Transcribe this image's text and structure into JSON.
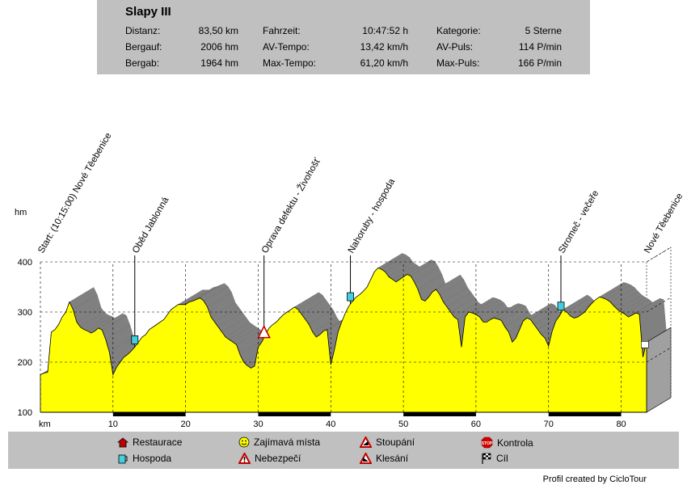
{
  "stats": {
    "title": "Slapy III",
    "rows": [
      [
        {
          "label": "Distanz:",
          "value": "83,50 km"
        },
        {
          "label": "Fahrzeit:",
          "value": "10:47:52 h"
        },
        {
          "label": "Kategorie:",
          "value": "5 Sterne"
        }
      ],
      [
        {
          "label": "Bergauf:",
          "value": "2006 hm"
        },
        {
          "label": "AV-Tempo:",
          "value": "13,42 km/h"
        },
        {
          "label": "AV-Puls:",
          "value": "114 P/min"
        }
      ],
      [
        {
          "label": "Bergab:",
          "value": "1964 hm"
        },
        {
          "label": "Max-Tempo:",
          "value": "61,20 km/h"
        },
        {
          "label": "Max-Puls:",
          "value": "166 P/min"
        }
      ]
    ]
  },
  "chart_data": {
    "type": "area",
    "ylabel": "hm",
    "xlabel": "km",
    "xlim": [
      0,
      83.5
    ],
    "ylim": [
      100,
      400
    ],
    "x_ticks": [
      10,
      20,
      30,
      40,
      50,
      60,
      70,
      80
    ],
    "y_ticks": [
      100,
      200,
      300,
      400
    ],
    "grid": true,
    "colors": {
      "fill": "#ffff00",
      "side": "#808080",
      "floor": "#a0a0a0"
    },
    "x": [
      0,
      0.5,
      1,
      1.5,
      2,
      2.5,
      3,
      3.5,
      4,
      4.5,
      5,
      5.5,
      6,
      6.5,
      7,
      7.5,
      8,
      8.5,
      9,
      9.5,
      10,
      10.5,
      11,
      11.5,
      12,
      12.5,
      13,
      13.5,
      14,
      14.5,
      15,
      16,
      17,
      18,
      19,
      20,
      20.5,
      21,
      21.5,
      22,
      22.5,
      23,
      23.5,
      24,
      24.5,
      25,
      25.5,
      26,
      26.5,
      27,
      27.5,
      28,
      28.5,
      29,
      29.5,
      30,
      30.5,
      31,
      31.5,
      32,
      32.5,
      33,
      33.5,
      34,
      34.5,
      35,
      35.5,
      36,
      36.5,
      37,
      37.5,
      38,
      38.5,
      39,
      39.5,
      40,
      40.5,
      41,
      41.5,
      42,
      42.5,
      43,
      43.5,
      44,
      44.5,
      45,
      45.5,
      46,
      46.5,
      47,
      47.5,
      48,
      48.5,
      49,
      49.5,
      50,
      50.5,
      51,
      51.5,
      52,
      52.5,
      53,
      53.5,
      54,
      54.5,
      55,
      55.5,
      56,
      56.5,
      57,
      57.5,
      58,
      58.5,
      59,
      59.5,
      60,
      60.5,
      61,
      61.5,
      62,
      62.5,
      63,
      63.5,
      64,
      64.5,
      65,
      65.5,
      66,
      66.5,
      67,
      67.5,
      68,
      68.5,
      69,
      69.5,
      70,
      70.5,
      71,
      71.5,
      72,
      72.5,
      73,
      73.5,
      74,
      74.5,
      75,
      75.5,
      76,
      76.5,
      77,
      77.5,
      78,
      78.5,
      79,
      79.5,
      80,
      80.5,
      81,
      81.5,
      82,
      82.5,
      83,
      83.5
    ],
    "values": [
      175,
      178,
      180,
      260,
      265,
      275,
      290,
      300,
      320,
      305,
      280,
      270,
      265,
      262,
      258,
      262,
      268,
      264,
      245,
      220,
      175,
      190,
      200,
      210,
      215,
      222,
      230,
      240,
      250,
      255,
      265,
      275,
      285,
      305,
      315,
      315,
      320,
      322,
      325,
      328,
      322,
      310,
      290,
      280,
      270,
      260,
      250,
      245,
      240,
      235,
      215,
      200,
      193,
      188,
      192,
      230,
      240,
      255,
      268,
      275,
      280,
      288,
      295,
      300,
      305,
      310,
      305,
      295,
      285,
      275,
      260,
      250,
      255,
      262,
      265,
      195,
      225,
      260,
      280,
      298,
      312,
      322,
      330,
      335,
      342,
      350,
      365,
      380,
      388,
      385,
      380,
      370,
      365,
      360,
      365,
      370,
      375,
      372,
      360,
      345,
      325,
      322,
      330,
      340,
      345,
      335,
      320,
      310,
      300,
      290,
      285,
      230,
      290,
      300,
      298,
      295,
      290,
      280,
      280,
      285,
      288,
      286,
      283,
      270,
      260,
      240,
      248,
      265,
      282,
      288,
      285,
      275,
      265,
      255,
      248,
      232,
      262,
      282,
      292,
      305,
      300,
      292,
      288,
      290,
      295,
      300,
      310,
      318,
      325,
      330,
      328,
      325,
      320,
      312,
      305,
      300,
      296,
      290,
      294,
      298,
      296,
      210,
      240
    ]
  },
  "annotations": [
    {
      "km": 0,
      "label": "Start: (10:15:00) Nové Těebenice"
    },
    {
      "km": 13,
      "label": "Oběd Jablonná"
    },
    {
      "km": 30.8,
      "label": "Oprava defektu - Živohošť"
    },
    {
      "km": 42.7,
      "label": "Nahoruby - hospoda"
    },
    {
      "km": 71.7,
      "label": "Stromeč - večeře"
    },
    {
      "km": 83.5,
      "label": "Nové Těebenice"
    }
  ],
  "legend": [
    {
      "icon": "house-icon",
      "label": "Restaurace"
    },
    {
      "icon": "smiley-icon",
      "label": "Zajímavá místa"
    },
    {
      "icon": "climb-icon",
      "label": "Stoupání"
    },
    {
      "icon": "stop-icon",
      "label": "Kontrola"
    },
    {
      "icon": "mug-icon",
      "label": "Hospoda"
    },
    {
      "icon": "warning-icon",
      "label": "Nebezpečí"
    },
    {
      "icon": "descent-icon",
      "label": "Klesání"
    },
    {
      "icon": "finish-flag-icon",
      "label": "Cíl"
    }
  ],
  "credit": "Profil created by CicloTour"
}
